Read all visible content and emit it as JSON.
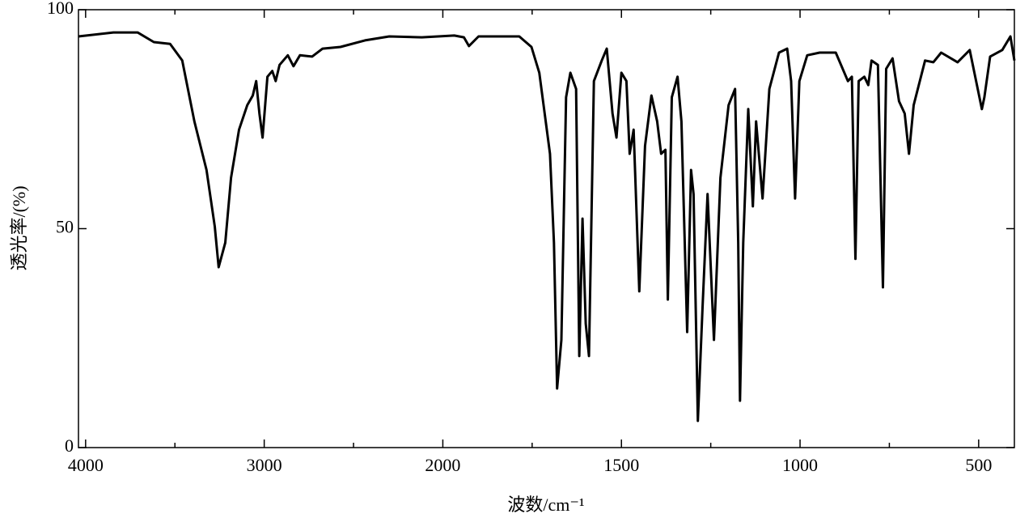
{
  "chart_data": {
    "type": "line",
    "x_label": "波数/cm⁻¹",
    "y_label": "透光率/(%)",
    "x_scale_break": 2000,
    "x_scale_ratio": 2,
    "xlim": [
      4040,
      400
    ],
    "xticks": [
      4000,
      3000,
      2000,
      1500,
      1000,
      500
    ],
    "xminorticks": [
      3500,
      2500,
      1750,
      1250,
      750
    ],
    "ylim": [
      0,
      100
    ],
    "yticks": [
      0,
      50,
      100
    ],
    "color": "#000000",
    "x": [
      4040,
      3845,
      3709,
      3618,
      3527,
      3459,
      3391,
      3323,
      3277,
      3255,
      3218,
      3186,
      3141,
      3095,
      3064,
      3045,
      3027,
      3009,
      2982,
      2955,
      2936,
      2914,
      2868,
      2836,
      2800,
      2732,
      2673,
      2573,
      2436,
      2300,
      2118,
      1968,
      1941,
      1927,
      1900,
      1786,
      1752,
      1730,
      1700,
      1689,
      1680,
      1668,
      1655,
      1643,
      1627,
      1618,
      1609,
      1600,
      1591,
      1577,
      1555,
      1541,
      1525,
      1514,
      1500,
      1486,
      1477,
      1466,
      1450,
      1434,
      1416,
      1400,
      1389,
      1377,
      1370,
      1359,
      1343,
      1332,
      1316,
      1305,
      1298,
      1286,
      1273,
      1259,
      1241,
      1223,
      1200,
      1182,
      1173,
      1168,
      1159,
      1145,
      1132,
      1123,
      1105,
      1086,
      1059,
      1036,
      1025,
      1014,
      1002,
      980,
      945,
      900,
      866,
      855,
      845,
      836,
      820,
      809,
      800,
      782,
      768,
      759,
      741,
      723,
      707,
      695,
      682,
      650,
      627,
      605,
      559,
      525,
      491,
      484,
      468,
      434,
      411,
      400
    ],
    "values": [
      93.9,
      94.8,
      94.8,
      92.6,
      92.2,
      88.4,
      74.5,
      63.4,
      50.5,
      41.2,
      46.8,
      61.6,
      72.6,
      78.2,
      80.4,
      83.7,
      76.3,
      70.8,
      84.7,
      86,
      83.7,
      87.4,
      89.6,
      87.1,
      89.6,
      89.3,
      91.1,
      91.5,
      93,
      93.9,
      93.7,
      94.1,
      93.7,
      91.7,
      93.9,
      93.9,
      91.5,
      85.6,
      67.1,
      46.8,
      13.5,
      24.6,
      80,
      85.6,
      81.9,
      20.9,
      52.3,
      28.3,
      20.9,
      83.7,
      88.4,
      91.1,
      76.3,
      70.8,
      85.6,
      83.7,
      67.1,
      72.6,
      35.7,
      68.9,
      80.4,
      74.5,
      67.1,
      68,
      33.8,
      80,
      84.7,
      74.5,
      26.4,
      63.4,
      57.9,
      6.1,
      32,
      57.9,
      24.6,
      61.6,
      78.2,
      81.9,
      46.8,
      10.7,
      46.8,
      77.3,
      55.1,
      74.5,
      56.9,
      81.9,
      90.2,
      91.1,
      83.7,
      56.9,
      83.7,
      89.6,
      90.2,
      90.2,
      83.7,
      84.7,
      43.1,
      83.7,
      84.7,
      82.8,
      88.4,
      87.4,
      36.6,
      86.5,
      88.9,
      79.1,
      76.3,
      67.1,
      78.2,
      88.4,
      88,
      90.2,
      88,
      90.8,
      77.3,
      80,
      89.3,
      90.8,
      93.9,
      88.4
    ]
  }
}
